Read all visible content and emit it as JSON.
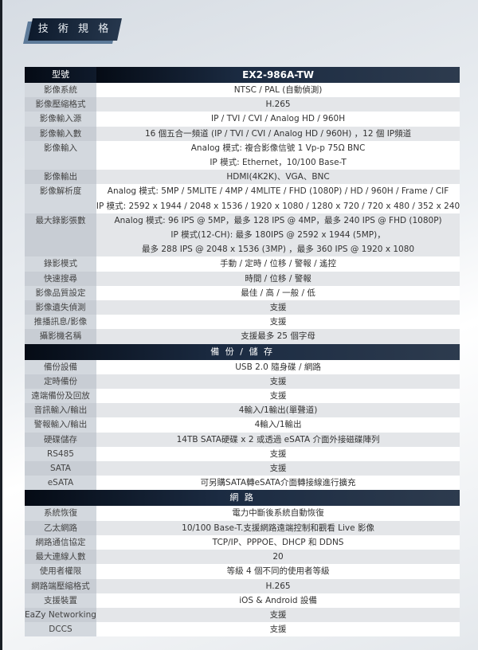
{
  "title": "技 術 規 格",
  "header": {
    "label": "型號",
    "model": "EX2-986A-TW"
  },
  "sections": [
    {
      "title": "",
      "rows": [
        {
          "label": "影像系統",
          "values": [
            "NTSC / PAL (自動偵測)"
          ]
        },
        {
          "label": "影像壓縮格式",
          "values": [
            "H.265"
          ]
        },
        {
          "label": "影像輸入源",
          "values": [
            "IP / TVI / CVI / Analog HD / 960H"
          ]
        },
        {
          "label": "影像輸入數",
          "values": [
            "16 個五合一頻道 (IP / TVI / CVI / Analog HD / 960H) ，12 個 IP頻道"
          ]
        },
        {
          "label": "影像輸入",
          "values": [
            "Analog 模式: 複合影像信號 1 Vp-p 75Ω BNC",
            "IP 模式: Ethernet，10/100 Base-T"
          ]
        },
        {
          "label": "影像輸出",
          "values": [
            "HDMI(4K2K)、VGA、BNC"
          ]
        },
        {
          "label": "影像解析度",
          "values": [
            "Analog 模式: 5MP / 5MLITE / 4MP / 4MLITE / FHD (1080P) / HD / 960H / Frame / CIF",
            "IP 模式: 2592 x 1944 / 2048 x 1536 / 1920 x 1080 / 1280 x 720 / 720 x 480 / 352 x 240"
          ]
        },
        {
          "label": "最大錄影張數",
          "values": [
            "Analog 模式: 96 IPS @ 5MP，最多 128 IPS @ 4MP，最多 240 IPS @ FHD (1080P)",
            "IP 模式(12-CH): 最多 180IPS @ 2592 x 1944 (5MP)，",
            "最多 288 IPS @ 2048 x 1536 (3MP) ，最多 360 IPS @ 1920 x 1080"
          ]
        },
        {
          "label": "錄影模式",
          "values": [
            "手動 / 定時 / 位移 / 警報 / 遙控"
          ]
        },
        {
          "label": "快速搜尋",
          "values": [
            "時間 / 位移 / 警報"
          ]
        },
        {
          "label": "影像品質設定",
          "values": [
            "最佳 / 高 / 一般 / 低"
          ]
        },
        {
          "label": "影像遺失偵測",
          "values": [
            "支援"
          ]
        },
        {
          "label": "推播訊息/影像",
          "values": [
            "支援"
          ]
        },
        {
          "label": "攝影機名稱",
          "values": [
            "支援最多 25 個字母"
          ]
        }
      ]
    },
    {
      "title": "備 份 / 儲 存",
      "rows": [
        {
          "label": "備份設備",
          "values": [
            "USB 2.0 隨身碟 / 網路"
          ]
        },
        {
          "label": "定時備份",
          "values": [
            "支援"
          ]
        },
        {
          "label": "遠端備份及回放",
          "values": [
            "支援"
          ]
        },
        {
          "label": "音訊輸入/輸出",
          "values": [
            "4輸入/1輸出(單聲道)"
          ]
        },
        {
          "label": "警報輸入/輸出",
          "values": [
            "4輸入/1輸出"
          ]
        },
        {
          "label": "硬碟儲存",
          "values": [
            "14TB SATA硬碟 x 2 或透過 eSATA 介面外接磁碟陣列"
          ]
        },
        {
          "label": "RS485",
          "values": [
            "支援"
          ]
        },
        {
          "label": "SATA",
          "values": [
            "支援"
          ]
        },
        {
          "label": "eSATA",
          "values": [
            "可另購SATA轉eSATA介面轉接線進行擴充"
          ]
        }
      ]
    },
    {
      "title": "網 路",
      "rows": [
        {
          "label": "系統恢復",
          "values": [
            "電力中斷後系統自動恢復"
          ]
        },
        {
          "label": "乙太網路",
          "values": [
            "10/100 Base-T.支援網路遠端控制和觀看 Live 影像"
          ]
        },
        {
          "label": "網路通信協定",
          "values": [
            "TCP/IP、PPPOE、DHCP 和 DDNS"
          ]
        },
        {
          "label": "最大連線人數",
          "values": [
            "20"
          ]
        },
        {
          "label": "使用者權限",
          "values": [
            "等級 4 個不同的使用者等級"
          ]
        },
        {
          "label": "網路端壓縮格式",
          "values": [
            "H.265"
          ]
        },
        {
          "label": "支援裝置",
          "values": [
            "iOS & Android 設備"
          ]
        },
        {
          "label": "EaZy Networking",
          "values": [
            "支援"
          ]
        },
        {
          "label": "DCCS",
          "values": [
            "支援"
          ]
        }
      ]
    }
  ]
}
